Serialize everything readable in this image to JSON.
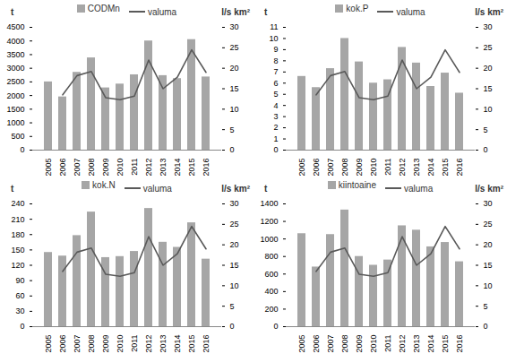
{
  "chart_data": [
    {
      "type": "bar",
      "categories": [
        "2005",
        "2006",
        "2007",
        "2008",
        "2009",
        "2010",
        "2011",
        "2012",
        "2013",
        "2014",
        "2015",
        "2016"
      ],
      "series": [
        {
          "name": "CODMn",
          "type": "bar",
          "color": "#a6a6a6",
          "values": [
            2500,
            1950,
            2850,
            3380,
            2280,
            2420,
            2760,
            4000,
            2730,
            2620,
            4050,
            2680
          ]
        },
        {
          "name": "valuma",
          "type": "line",
          "axis": "y2",
          "color": "#595959",
          "values": [
            null,
            13.5,
            18.2,
            19.2,
            12.8,
            12.3,
            13.2,
            22.0,
            15.0,
            17.8,
            24.5,
            19.0
          ]
        }
      ],
      "ylabel": "t",
      "y2label": "l/s km²",
      "legend": "top",
      "ylim": [
        0,
        4500
      ],
      "yticks": [
        0,
        500,
        1000,
        1500,
        2000,
        2500,
        3000,
        3500,
        4000,
        4500
      ],
      "y2lim": [
        0,
        30
      ],
      "y2ticks": [
        0,
        5,
        10,
        15,
        20,
        25,
        30
      ]
    },
    {
      "type": "bar",
      "categories": [
        "2005",
        "2006",
        "2007",
        "2008",
        "2009",
        "2010",
        "2011",
        "2012",
        "2013",
        "2014",
        "2015",
        "2016"
      ],
      "series": [
        {
          "name": "kok.P",
          "type": "bar",
          "color": "#a6a6a6",
          "values": [
            6.6,
            5.6,
            7.3,
            10.0,
            7.9,
            6.0,
            6.3,
            9.2,
            7.8,
            5.7,
            6.9,
            5.1
          ]
        },
        {
          "name": "valuma",
          "type": "line",
          "axis": "y2",
          "color": "#595959",
          "values": [
            null,
            13.5,
            18.2,
            19.2,
            12.8,
            12.3,
            13.2,
            22.0,
            15.0,
            17.8,
            24.5,
            19.0
          ]
        }
      ],
      "ylabel": "t",
      "y2label": "l/s km²",
      "legend": "top",
      "ylim": [
        0,
        11
      ],
      "yticks": [
        0,
        1,
        2,
        3,
        4,
        5,
        6,
        7,
        8,
        9,
        10,
        11
      ],
      "y2lim": [
        0,
        30
      ],
      "y2ticks": [
        0,
        5,
        10,
        15,
        20,
        25,
        30
      ]
    },
    {
      "type": "bar",
      "categories": [
        "2005",
        "2006",
        "2007",
        "2008",
        "2009",
        "2010",
        "2011",
        "2012",
        "2013",
        "2014",
        "2015",
        "2016"
      ],
      "series": [
        {
          "name": "kok.N",
          "type": "bar",
          "color": "#a6a6a6",
          "values": [
            145,
            138,
            178,
            224,
            135,
            137,
            147,
            231,
            165,
            155,
            203,
            132
          ]
        },
        {
          "name": "valuma",
          "type": "line",
          "axis": "y2",
          "color": "#595959",
          "values": [
            null,
            13.5,
            18.2,
            19.2,
            12.8,
            12.3,
            13.2,
            22.0,
            15.0,
            17.8,
            24.5,
            19.0
          ]
        }
      ],
      "ylabel": "t",
      "y2label": "l/s km²",
      "legend": "top",
      "ylim": [
        0,
        240
      ],
      "yticks": [
        0,
        30,
        60,
        90,
        120,
        150,
        180,
        210,
        240
      ],
      "y2lim": [
        0,
        30
      ],
      "y2ticks": [
        0,
        5,
        10,
        15,
        20,
        25,
        30
      ]
    },
    {
      "type": "bar",
      "categories": [
        "2005",
        "2006",
        "2007",
        "2008",
        "2009",
        "2010",
        "2011",
        "2012",
        "2013",
        "2014",
        "2015",
        "2016"
      ],
      "series": [
        {
          "name": "kiintoaine",
          "type": "bar",
          "color": "#a6a6a6",
          "values": [
            1060,
            680,
            1050,
            1330,
            800,
            700,
            760,
            1150,
            1100,
            910,
            960,
            740
          ]
        },
        {
          "name": "valuma",
          "type": "line",
          "axis": "y2",
          "color": "#595959",
          "values": [
            null,
            13.5,
            18.2,
            19.2,
            12.8,
            12.3,
            13.2,
            22.0,
            15.0,
            17.8,
            24.5,
            19.0
          ]
        }
      ],
      "ylabel": "t",
      "y2label": "l/s km²",
      "legend": "top",
      "ylim": [
        0,
        1400
      ],
      "yticks": [
        0,
        200,
        400,
        600,
        800,
        1000,
        1200,
        1400
      ],
      "y2lim": [
        0,
        30
      ],
      "y2ticks": [
        0,
        5,
        10,
        15,
        20,
        25,
        30
      ]
    }
  ]
}
